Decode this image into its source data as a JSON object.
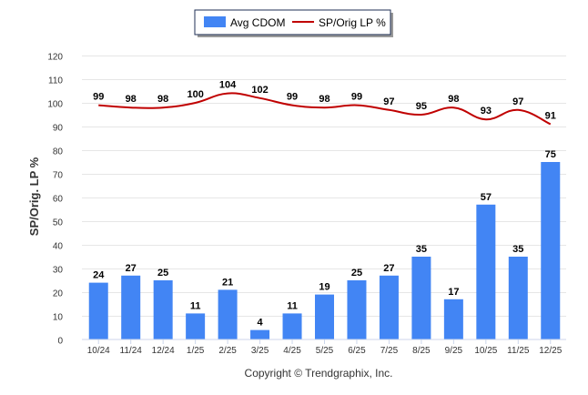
{
  "chart_data": {
    "type": "bar",
    "categories": [
      "10/24",
      "11/24",
      "12/24",
      "1/25",
      "2/25",
      "3/25",
      "4/25",
      "5/25",
      "6/25",
      "7/25",
      "8/25",
      "9/25",
      "10/25",
      "11/25",
      "12/25"
    ],
    "series": [
      {
        "name": "Avg CDOM",
        "type": "bar",
        "color": "#4285f4",
        "values": [
          24,
          27,
          25,
          11,
          21,
          4,
          11,
          19,
          25,
          27,
          35,
          17,
          57,
          35,
          75
        ]
      },
      {
        "name": "SP/Orig LP %",
        "type": "line",
        "color": "#c00000",
        "values": [
          99,
          98,
          98,
          100,
          104,
          102,
          99,
          98,
          99,
          97,
          95,
          98,
          93,
          97,
          91
        ]
      }
    ],
    "ylabel": "SP/Orig. LP %",
    "xlabel": "",
    "ylim": [
      0,
      120
    ],
    "yticks": [
      "0",
      "10",
      "20",
      "30",
      "40",
      "50",
      "60",
      "70",
      "80",
      "90",
      "100",
      "110",
      "120"
    ],
    "legend_position": "top-center",
    "grid": true
  },
  "footer": {
    "copyright": "Copyright © Trendgraphix, Inc."
  }
}
